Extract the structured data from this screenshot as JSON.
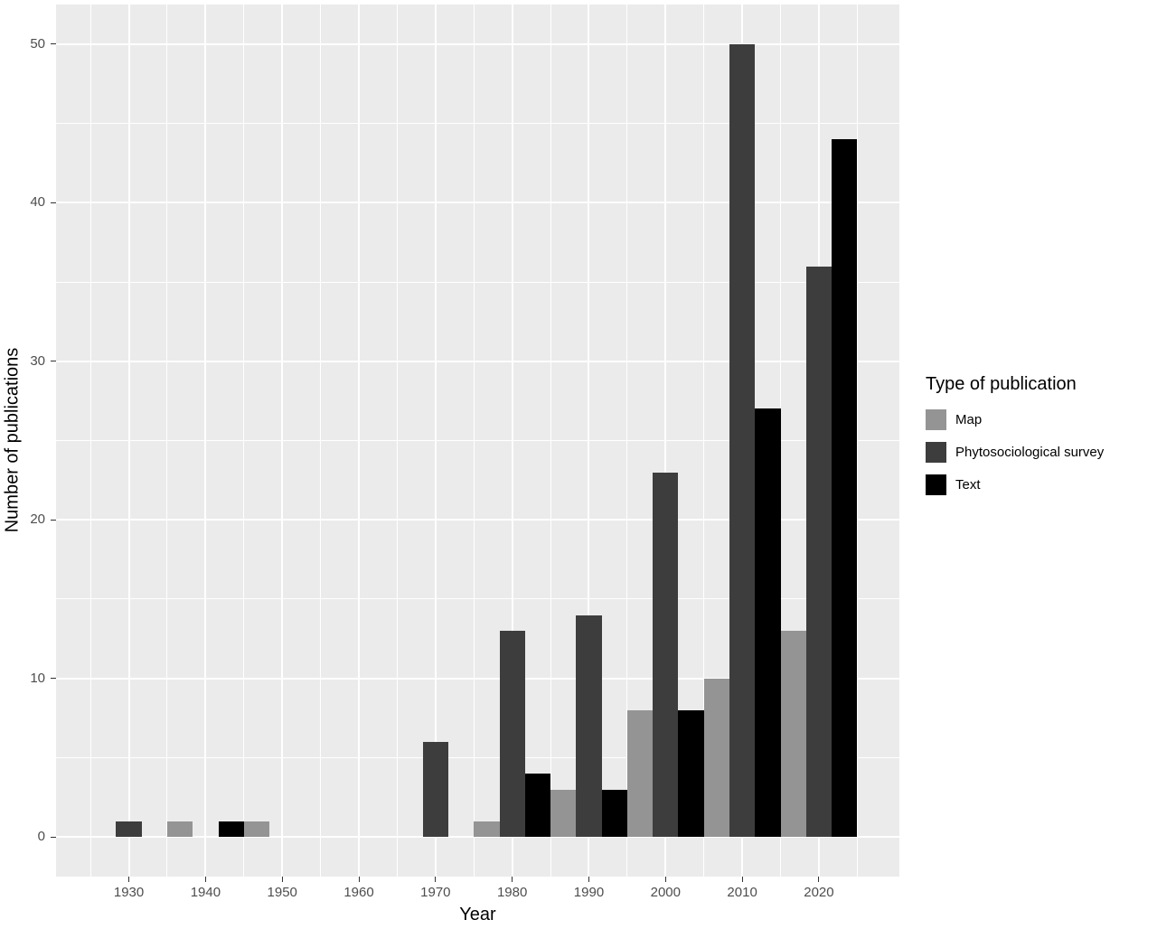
{
  "chart_data": {
    "type": "bar",
    "title": "",
    "xlabel": "Year",
    "ylabel": "Number of publications",
    "legend_title": "Type of publication",
    "legend_position": "right",
    "grid": true,
    "panel_background": "#ebebeb",
    "grid_color": "#ffffff",
    "xlim": [
      1920.5,
      2030.5
    ],
    "ylim": [
      -2.5,
      52.5
    ],
    "x_ticks": [
      1930,
      1940,
      1950,
      1960,
      1970,
      1980,
      1990,
      2000,
      2010,
      2020
    ],
    "y_ticks": [
      0,
      10,
      20,
      30,
      40,
      50
    ],
    "categories": [
      1930,
      1940,
      1950,
      1960,
      1970,
      1980,
      1990,
      2000,
      2010,
      2020
    ],
    "group_width_years": 10,
    "series": [
      {
        "name": "Map",
        "color": "#949494",
        "values": [
          0,
          1,
          1,
          0,
          0,
          1,
          3,
          8,
          10,
          13
        ]
      },
      {
        "name": "Phytosociological survey",
        "color": "#3d3d3d",
        "values": [
          1,
          0,
          0,
          0,
          6,
          13,
          14,
          23,
          50,
          36
        ]
      },
      {
        "name": "Text",
        "color": "#000000",
        "values": [
          0,
          1,
          0,
          0,
          0,
          4,
          3,
          8,
          27,
          44
        ]
      }
    ]
  }
}
